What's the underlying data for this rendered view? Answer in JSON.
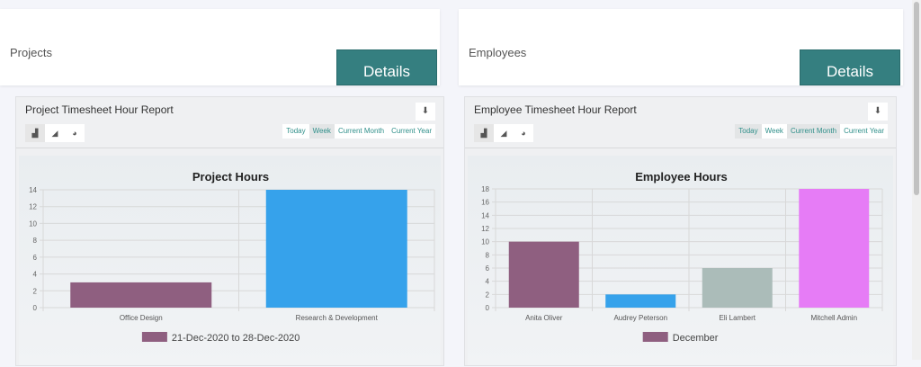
{
  "cards": [
    {
      "label": "Projects",
      "button": "Details"
    },
    {
      "label": "Employees",
      "button": "Details"
    }
  ],
  "panels": [
    {
      "title": "Project Timesheet Hour Report",
      "chart_types": [
        "bar-chart-icon",
        "area-chart-icon",
        "pie-chart-icon"
      ],
      "ranges": [
        "Today",
        "Week",
        "Current Month",
        "Current Year"
      ],
      "active_ranges": [
        "Week"
      ]
    },
    {
      "title": "Employee Timesheet Hour Report",
      "chart_types": [
        "bar-chart-icon",
        "area-chart-icon",
        "pie-chart-icon"
      ],
      "ranges": [
        "Today",
        "Week",
        "Current Month",
        "Current Year"
      ],
      "active_ranges": [
        "Today",
        "Current Month"
      ]
    }
  ],
  "chart_data": [
    {
      "type": "bar",
      "title": "Project Hours",
      "categories": [
        "Office Design",
        "Research & Development"
      ],
      "series": [
        {
          "name": "21-Dec-2020 to 28-Dec-2020",
          "values": [
            3,
            14
          ]
        }
      ],
      "colors": [
        "#8f5f80",
        "#36a2eb"
      ],
      "ylim": [
        0,
        14
      ],
      "yticks": [
        0,
        2,
        4,
        6,
        8,
        10,
        12,
        14
      ],
      "grid": true,
      "legend": "bottom"
    },
    {
      "type": "bar",
      "title": "Employee Hours",
      "categories": [
        "Anita Oliver",
        "Audrey Peterson",
        "Eli Lambert",
        "Mitchell Admin"
      ],
      "series": [
        {
          "name": "December",
          "values": [
            10,
            2,
            6,
            18
          ]
        }
      ],
      "colors": [
        "#8f5f80",
        "#36a2eb",
        "#abbcb9",
        "#e67cf6"
      ],
      "ylim": [
        0,
        18
      ],
      "yticks": [
        0,
        2,
        4,
        6,
        8,
        10,
        12,
        14,
        16,
        18
      ],
      "grid": true,
      "legend": "bottom"
    }
  ]
}
